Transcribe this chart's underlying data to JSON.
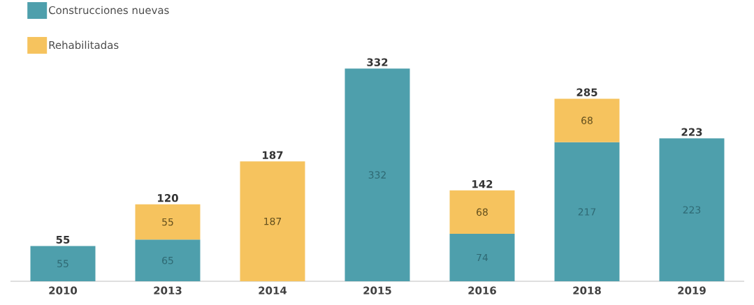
{
  "chart_data": {
    "type": "bar",
    "stacked": true,
    "categories": [
      "2010",
      "2013",
      "2014",
      "2015",
      "2016",
      "2018",
      "2019"
    ],
    "series": [
      {
        "name": "Construcciones nuevas",
        "color": "#4e9fac",
        "values": [
          55,
          65,
          null,
          332,
          74,
          217,
          223
        ]
      },
      {
        "name": "Rehabilitadas",
        "color": "#f6c35e",
        "values": [
          null,
          55,
          187,
          null,
          68,
          68,
          null
        ]
      }
    ],
    "totals": [
      "55",
      "120",
      "187",
      "332",
      "142",
      "285",
      "223"
    ],
    "data_labels": true,
    "legend": "top left"
  }
}
